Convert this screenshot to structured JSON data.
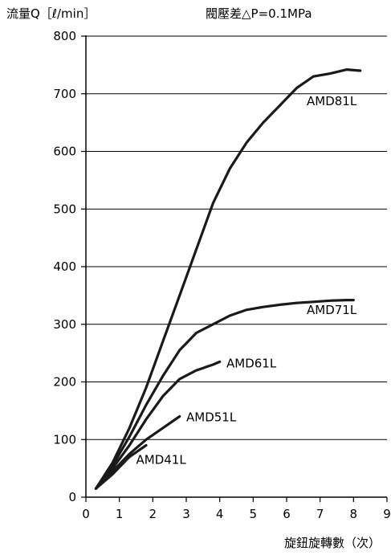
{
  "chart_data": {
    "type": "line",
    "title": "",
    "ylabel": "流量Q［ℓ/min］",
    "xlabel": "旋鈕旋轉數（次）",
    "condition": "閥壓差△P=0.1MPa",
    "xlim": [
      0,
      9
    ],
    "ylim": [
      0,
      800
    ],
    "xticks": [
      "0",
      "1",
      "2",
      "3",
      "4",
      "5",
      "6",
      "7",
      "8",
      "9"
    ],
    "yticks": [
      "0",
      "100",
      "200",
      "300",
      "400",
      "500",
      "600",
      "700",
      "800"
    ],
    "grid": "horizontal",
    "line_color": "#1a1a1a",
    "series": [
      {
        "name": "AMD81L",
        "x": [
          0.3,
          0.8,
          1.3,
          1.8,
          2.3,
          2.8,
          3.3,
          3.8,
          4.3,
          4.8,
          5.3,
          5.8,
          6.3,
          6.8,
          7.3,
          7.8,
          8.2
        ],
        "y": [
          15,
          60,
          120,
          190,
          270,
          350,
          430,
          510,
          570,
          615,
          650,
          680,
          710,
          730,
          735,
          742,
          740
        ]
      },
      {
        "name": "AMD71L",
        "x": [
          0.3,
          0.8,
          1.3,
          1.8,
          2.3,
          2.8,
          3.3,
          3.8,
          4.3,
          4.8,
          5.3,
          5.8,
          6.3,
          6.8,
          7.3,
          7.8,
          8.0
        ],
        "y": [
          15,
          55,
          105,
          160,
          210,
          255,
          285,
          300,
          315,
          325,
          330,
          334,
          337,
          339,
          341,
          342,
          342
        ]
      },
      {
        "name": "AMD61L",
        "x": [
          0.3,
          0.8,
          1.3,
          1.8,
          2.3,
          2.8,
          3.3,
          3.8,
          4.0
        ],
        "y": [
          15,
          50,
          90,
          135,
          175,
          205,
          220,
          230,
          235
        ]
      },
      {
        "name": "AMD51L",
        "x": [
          0.3,
          0.8,
          1.3,
          1.8,
          2.3,
          2.8
        ],
        "y": [
          15,
          45,
          75,
          100,
          120,
          140
        ]
      },
      {
        "name": "AMD41L",
        "x": [
          0.3,
          0.8,
          1.3,
          1.8
        ],
        "y": [
          15,
          40,
          70,
          90
        ]
      }
    ],
    "label_positions_data": [
      {
        "series": "AMD81L",
        "x": 6.6,
        "y": 680
      },
      {
        "series": "AMD71L",
        "x": 6.6,
        "y": 318
      },
      {
        "series": "AMD61L",
        "x": 4.2,
        "y": 225
      },
      {
        "series": "AMD51L",
        "x": 3.0,
        "y": 132
      },
      {
        "series": "AMD41L",
        "x": 1.5,
        "y": 58
      }
    ]
  }
}
